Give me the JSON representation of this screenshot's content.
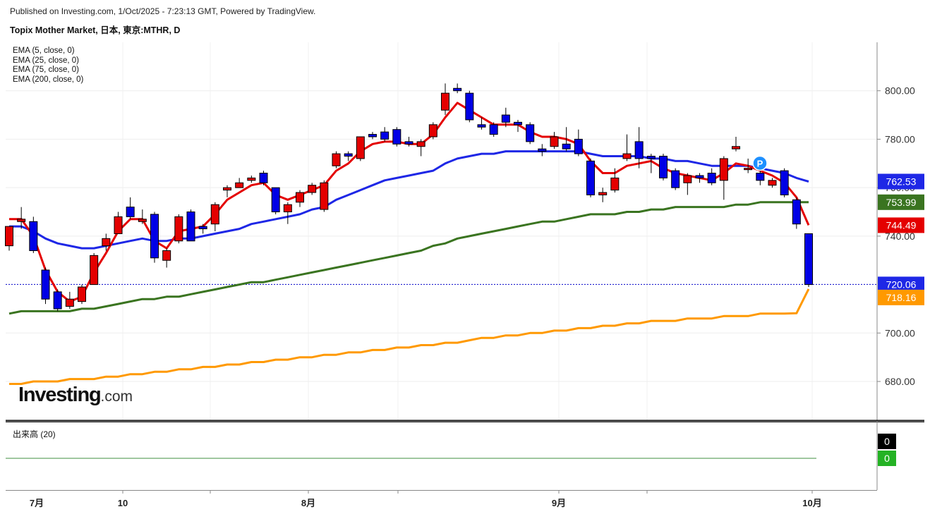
{
  "header": {
    "published": "Published on Investing.com, 1/Oct/2025 - 7:23:13 GMT, Powered by TradingView.",
    "title": "Topix Mother Market, 日本, 東京:MTHR, D"
  },
  "legend": {
    "ema5": "EMA (5, close, 0)",
    "ema25": "EMA (25, close, 0)",
    "ema75": "EMA (75, close, 0)",
    "ema200": "EMA (200, close, 0)"
  },
  "volume_label": "出来高 (20)",
  "logo": {
    "main": "Investing",
    "suffix": ".com"
  },
  "colors": {
    "up": "#e40000",
    "down": "#0000e6",
    "ema5": "#e40000",
    "ema25": "#1e27e6",
    "ema75": "#3a7420",
    "ema200": "#ff9900",
    "last_line": "#0000c8",
    "vol_pos": "#24b224",
    "vol_zero": "#000000",
    "marker": "#1e90ff"
  },
  "chart_data": {
    "type": "candlestick",
    "ylim": [
      664,
      820
    ],
    "y_ticks": [
      "680.00",
      "700.00",
      "740.00",
      "760.00",
      "780.00",
      "800.00"
    ],
    "x_labels": [
      "7月",
      "10",
      "8月",
      "9月",
      "10月"
    ],
    "candles": [
      [
        736,
        744,
        743,
        734
      ],
      [
        746,
        747,
        752,
        743
      ],
      [
        746,
        734,
        748,
        733
      ],
      [
        726,
        714,
        727,
        712
      ],
      [
        717,
        710,
        718,
        709
      ],
      [
        711,
        714,
        717,
        710
      ],
      [
        713,
        719,
        720,
        712
      ],
      [
        720,
        732,
        733,
        720
      ],
      [
        736,
        739,
        741,
        734
      ],
      [
        741,
        748,
        750,
        741
      ],
      [
        752,
        748,
        756,
        747
      ],
      [
        746,
        747,
        751,
        745
      ],
      [
        749,
        731,
        750,
        729
      ],
      [
        730,
        734,
        735,
        727
      ],
      [
        738,
        748,
        749,
        737
      ],
      [
        750,
        738,
        751,
        738
      ],
      [
        744,
        743,
        745,
        741
      ],
      [
        745,
        753,
        754,
        742
      ],
      [
        759,
        760,
        761,
        756
      ],
      [
        760,
        762,
        764,
        760
      ],
      [
        763,
        764,
        765,
        762
      ],
      [
        766,
        762,
        767,
        761
      ],
      [
        760,
        750,
        760,
        749
      ],
      [
        750,
        753,
        754,
        745
      ],
      [
        754,
        758,
        759,
        752
      ],
      [
        758,
        761,
        762,
        757
      ],
      [
        751,
        762,
        763,
        750
      ],
      [
        769,
        774,
        775,
        768
      ],
      [
        774,
        773,
        775,
        771
      ],
      [
        772,
        781,
        781,
        771
      ],
      [
        782,
        781,
        783,
        780
      ],
      [
        783,
        780,
        785,
        779
      ],
      [
        784,
        778,
        785,
        777
      ],
      [
        779,
        778,
        781,
        777
      ],
      [
        777,
        779,
        780,
        773
      ],
      [
        781,
        786,
        787,
        780
      ],
      [
        792,
        799,
        803,
        790
      ],
      [
        801,
        800,
        803,
        799
      ],
      [
        799,
        788,
        800,
        787
      ],
      [
        786,
        785,
        789,
        784
      ],
      [
        786,
        782,
        787,
        781
      ],
      [
        790,
        787,
        793,
        785
      ],
      [
        787,
        786,
        788,
        783
      ],
      [
        786,
        779,
        787,
        778
      ],
      [
        776,
        775,
        778,
        773
      ],
      [
        777,
        781,
        783,
        776
      ],
      [
        778,
        776,
        785,
        775
      ],
      [
        780,
        774,
        784,
        773
      ],
      [
        771,
        757,
        772,
        756
      ],
      [
        757,
        758,
        760,
        754
      ],
      [
        759,
        764,
        768,
        758
      ],
      [
        772,
        774,
        782,
        771
      ],
      [
        779,
        772,
        785,
        768
      ],
      [
        773,
        772,
        774,
        766
      ],
      [
        773,
        764,
        774,
        763
      ],
      [
        767,
        760,
        768,
        759
      ],
      [
        762,
        765,
        766,
        757
      ],
      [
        765,
        764,
        766,
        762
      ],
      [
        766,
        762,
        768,
        761
      ],
      [
        763,
        772,
        773,
        755
      ],
      [
        776,
        777,
        781,
        775
      ],
      [
        768,
        768,
        772,
        766
      ],
      [
        766,
        763,
        769,
        761
      ],
      [
        761,
        763,
        764,
        760
      ],
      [
        767,
        757,
        768,
        756
      ],
      [
        755,
        745,
        756,
        743
      ],
      [
        741,
        720,
        741,
        719
      ]
    ],
    "ema5": [
      747,
      747,
      740,
      726,
      717,
      713,
      715,
      725,
      733,
      742,
      747,
      747,
      738,
      735,
      742,
      743,
      744,
      749,
      755,
      758,
      761,
      762,
      757,
      755,
      757,
      759,
      761,
      767,
      770,
      775,
      778,
      779,
      779,
      778,
      778,
      782,
      789,
      795,
      792,
      789,
      786,
      786,
      786,
      783,
      781,
      781,
      780,
      778,
      771,
      766,
      766,
      769,
      770,
      771,
      768,
      766,
      765,
      764,
      763,
      766,
      770,
      769,
      767,
      765,
      762,
      756,
      744.49
    ],
    "ema25": [
      744,
      744,
      742,
      739,
      737,
      736,
      735,
      735,
      736,
      737,
      738,
      739,
      738,
      738,
      739,
      739,
      740,
      741,
      742,
      743,
      745,
      746,
      747,
      748,
      749,
      751,
      752,
      755,
      757,
      759,
      761,
      763,
      764,
      765,
      766,
      767,
      770,
      772,
      773,
      774,
      774,
      775,
      775,
      775,
      775,
      775,
      775,
      775,
      774,
      773,
      773,
      773,
      773,
      772,
      772,
      771,
      771,
      770,
      769,
      769,
      769,
      769,
      768,
      767,
      766,
      764,
      762.53
    ],
    "ema75": [
      708,
      709,
      709,
      709,
      709,
      709,
      710,
      710,
      711,
      712,
      713,
      714,
      714,
      715,
      715,
      716,
      717,
      718,
      719,
      720,
      721,
      721,
      722,
      723,
      724,
      725,
      726,
      727,
      728,
      729,
      730,
      731,
      732,
      733,
      734,
      736,
      737,
      739,
      740,
      741,
      742,
      743,
      744,
      745,
      746,
      746,
      747,
      748,
      749,
      749,
      749,
      750,
      750,
      751,
      751,
      752,
      752,
      752,
      752,
      752,
      753,
      753,
      754,
      754,
      754,
      754,
      753.99
    ],
    "ema200": [
      679,
      679,
      680,
      680,
      680,
      681,
      681,
      681,
      682,
      682,
      683,
      683,
      684,
      684,
      685,
      685,
      686,
      686,
      687,
      687,
      688,
      688,
      689,
      689,
      690,
      690,
      691,
      691,
      692,
      692,
      693,
      693,
      694,
      694,
      695,
      695,
      696,
      696,
      697,
      698,
      698,
      699,
      699,
      700,
      700,
      701,
      701,
      702,
      702,
      703,
      703,
      704,
      704,
      705,
      705,
      705,
      706,
      706,
      706,
      707,
      707,
      707,
      708,
      708,
      708,
      708.16,
      718.16
    ],
    "price_tags": [
      {
        "value": 762.53,
        "label": "762.53",
        "color": "#1e27e6"
      },
      {
        "value": 753.99,
        "label": "753.99",
        "color": "#3a7420"
      },
      {
        "value": 744.49,
        "label": "744.49",
        "color": "#e40000"
      },
      {
        "value": 720.06,
        "label": "720.06",
        "color": "#1e27e6"
      },
      {
        "value": 718.16,
        "label": "718.16",
        "color": "#ff9900"
      }
    ],
    "last_close": 720.06,
    "marker": {
      "label": "P",
      "index": 60,
      "value": 773
    },
    "volume": {
      "tags": [
        {
          "label": "0",
          "color": "#000000"
        },
        {
          "label": "0",
          "color": "#24b224"
        }
      ]
    }
  }
}
